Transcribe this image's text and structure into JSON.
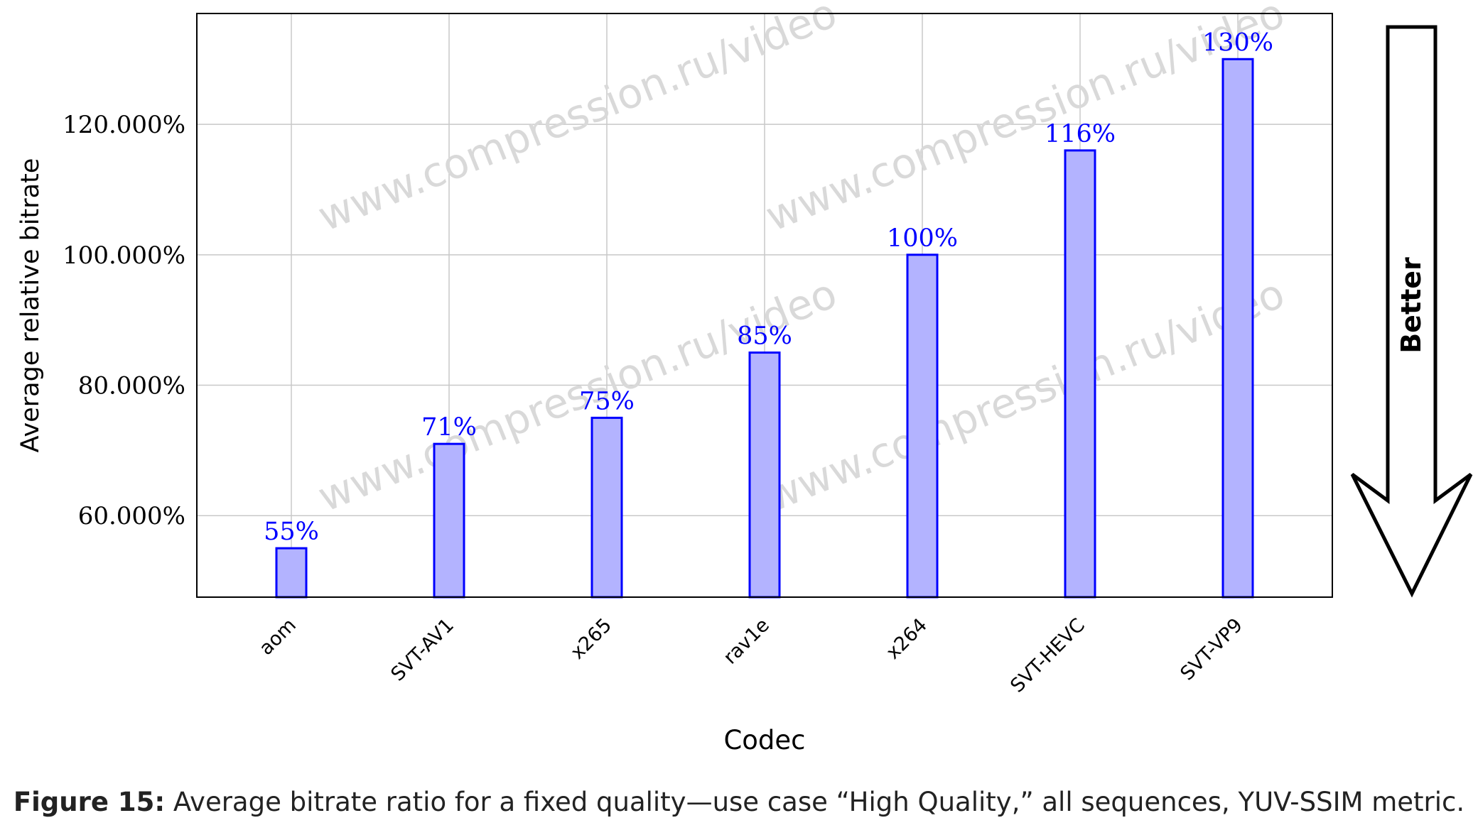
{
  "chart_data": {
    "type": "bar",
    "categories": [
      "aom",
      "SVT-AV1",
      "x265",
      "rav1e",
      "x264",
      "SVT-HEVC",
      "SVT-VP9"
    ],
    "values": [
      55,
      71,
      75,
      85,
      100,
      116,
      130
    ],
    "data_labels": [
      "55%",
      "71%",
      "75%",
      "85%",
      "100%",
      "116%",
      "130%"
    ],
    "xlabel": "Codec",
    "ylabel": "Average relative bitrate",
    "yticks": [
      60,
      80,
      100,
      120
    ],
    "ytick_labels": [
      "60.000%",
      "80.000%",
      "100.000%",
      "120.000%"
    ],
    "ylim": [
      47.5,
      137
    ],
    "grid": true,
    "bar_color": "#b3b3ff",
    "bar_edge_color": "#0000ff",
    "label_color": "#0000ff",
    "watermark": "www.compression.ru/video",
    "arrow_label": "Better"
  },
  "caption": {
    "prefix": "Figure 15:",
    "text": " Average bitrate ratio for a fixed quality—use case “High Quality,” all sequences, YUV-SSIM metric."
  }
}
